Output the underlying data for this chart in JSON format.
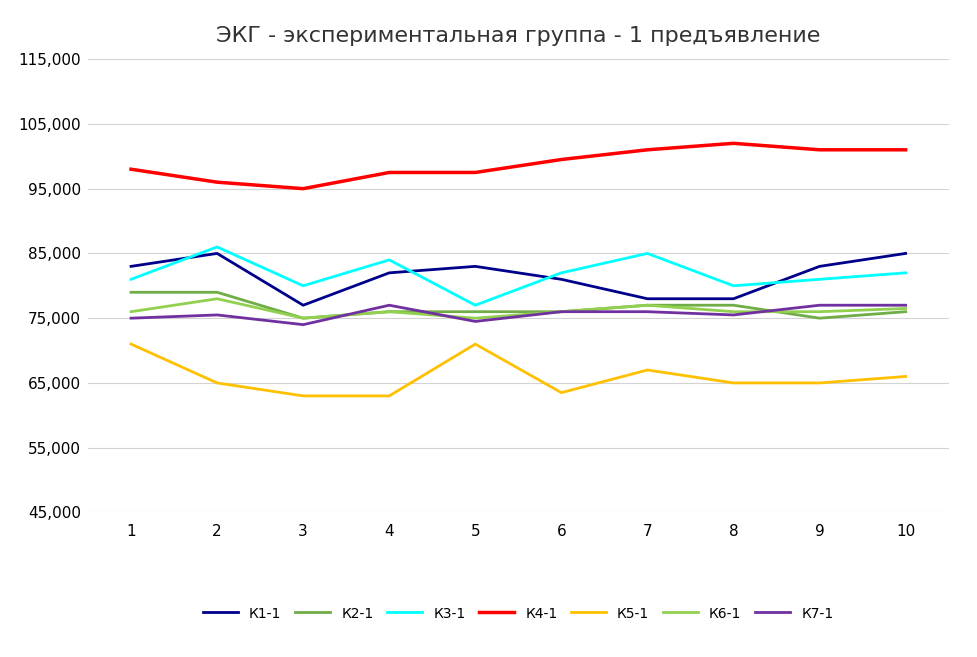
{
  "title": "ЭКГ - экспериментальная группа - 1 предъявление",
  "x": [
    1,
    2,
    3,
    4,
    5,
    6,
    7,
    8,
    9,
    10
  ],
  "series": {
    "К1-1": {
      "values": [
        83000,
        85000,
        77000,
        82000,
        83000,
        81000,
        78000,
        78000,
        83000,
        85000
      ],
      "color": "#00008B",
      "linewidth": 2.0
    },
    "К2-1": {
      "values": [
        79000,
        79000,
        75000,
        76000,
        76000,
        76000,
        77000,
        77000,
        75000,
        76000
      ],
      "color": "#70AD47",
      "linewidth": 2.0
    },
    "К3-1": {
      "values": [
        81000,
        86000,
        80000,
        84000,
        77000,
        82000,
        85000,
        80000,
        81000,
        82000
      ],
      "color": "#00FFFF",
      "linewidth": 2.0
    },
    "К4-1": {
      "values": [
        98000,
        96000,
        95000,
        97500,
        97500,
        99500,
        101000,
        102000,
        101000,
        101000
      ],
      "color": "#FF0000",
      "linewidth": 2.5
    },
    "К5-1": {
      "values": [
        71000,
        65000,
        63000,
        63000,
        71000,
        63500,
        67000,
        65000,
        65000,
        66000
      ],
      "color": "#FFC000",
      "linewidth": 2.0
    },
    "К6-1": {
      "values": [
        76000,
        78000,
        75000,
        76000,
        75000,
        76000,
        77000,
        76000,
        76000,
        76500
      ],
      "color": "#92D050",
      "linewidth": 2.0
    },
    "К7-1": {
      "values": [
        75000,
        75500,
        74000,
        77000,
        74500,
        76000,
        76000,
        75500,
        77000,
        77000
      ],
      "color": "#7030A0",
      "linewidth": 2.0
    }
  },
  "ylim": [
    45000,
    115000
  ],
  "yticks": [
    45000,
    55000,
    65000,
    75000,
    85000,
    95000,
    105000,
    115000
  ],
  "xticks": [
    1,
    2,
    3,
    4,
    5,
    6,
    7,
    8,
    9,
    10
  ],
  "grid_color": "#D3D3D3",
  "background_color": "#FFFFFF",
  "title_fontsize": 16,
  "tick_fontsize": 11,
  "legend_fontsize": 10
}
